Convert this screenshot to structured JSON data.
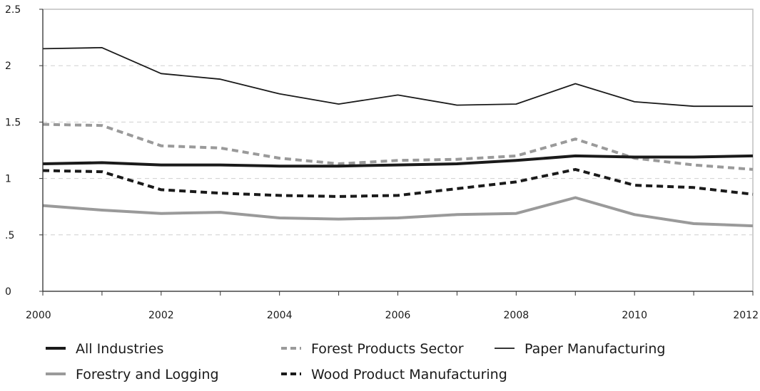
{
  "chart_data": {
    "type": "line",
    "title": "",
    "xlabel": "",
    "ylabel": "",
    "x": [
      2000,
      2001,
      2002,
      2003,
      2004,
      2005,
      2006,
      2007,
      2008,
      2009,
      2010,
      2011,
      2012
    ],
    "xticks": [
      2000,
      2002,
      2004,
      2006,
      2008,
      2010,
      2012
    ],
    "xtick_labels": [
      "2000",
      "2002",
      "2004",
      "2006",
      "2008",
      "2010",
      "2012"
    ],
    "yticks": [
      0,
      0.5,
      1,
      1.5,
      2,
      2.5
    ],
    "ytick_labels": [
      "0",
      ".5",
      "1",
      "1.5",
      "2",
      "2.5"
    ],
    "xlim": [
      2000,
      2012
    ],
    "ylim": [
      0,
      2.5
    ],
    "grid": "horizontal dashed",
    "legend_position": "bottom",
    "series": [
      {
        "name": "All Industries",
        "color": "#1a1a1a",
        "style": "solid-thick",
        "values": [
          1.13,
          1.14,
          1.12,
          1.12,
          1.11,
          1.11,
          1.12,
          1.13,
          1.16,
          1.2,
          1.19,
          1.19,
          1.2
        ]
      },
      {
        "name": "Forest Products Sector",
        "color": "#9a9a9a",
        "style": "dashed-thick",
        "values": [
          1.48,
          1.47,
          1.29,
          1.27,
          1.18,
          1.13,
          1.16,
          1.17,
          1.2,
          1.35,
          1.18,
          1.12,
          1.08
        ]
      },
      {
        "name": "Paper Manufacturing",
        "color": "#1a1a1a",
        "style": "solid-thin",
        "values": [
          2.15,
          2.16,
          1.93,
          1.88,
          1.75,
          1.66,
          1.74,
          1.65,
          1.66,
          1.84,
          1.68,
          1.64,
          1.64
        ]
      },
      {
        "name": "Forestry and Logging",
        "color": "#9a9a9a",
        "style": "solid-thick",
        "values": [
          0.76,
          0.72,
          0.69,
          0.7,
          0.65,
          0.64,
          0.65,
          0.68,
          0.69,
          0.83,
          0.68,
          0.6,
          0.58
        ]
      },
      {
        "name": "Wood Product Manufacturing",
        "color": "#1a1a1a",
        "style": "dashed-thick",
        "values": [
          1.07,
          1.06,
          0.9,
          0.87,
          0.85,
          0.84,
          0.85,
          0.91,
          0.97,
          1.08,
          0.94,
          0.92,
          0.86
        ]
      }
    ]
  }
}
